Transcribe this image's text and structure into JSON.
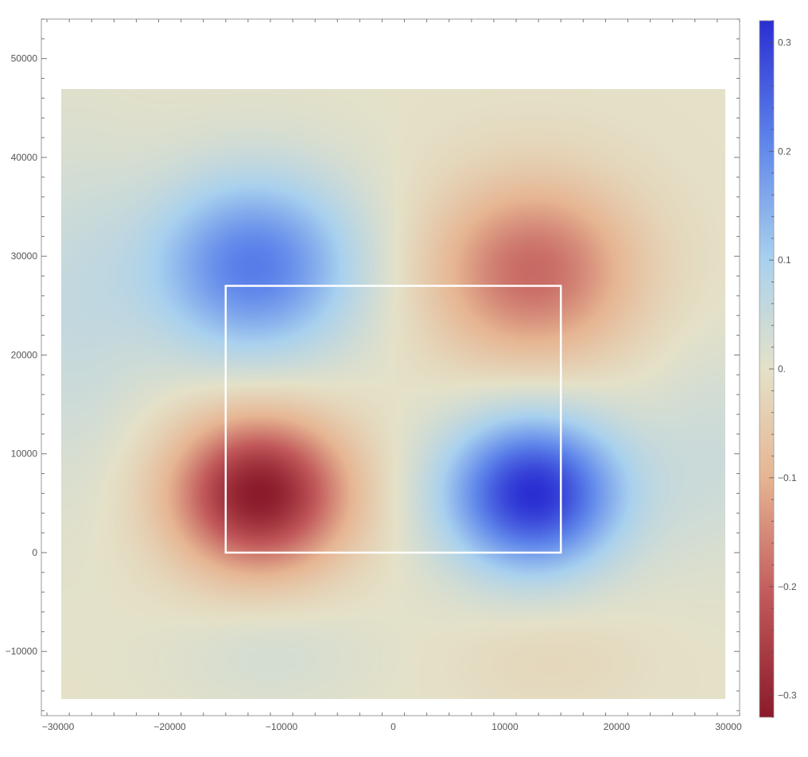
{
  "chart_data": {
    "type": "heatmap",
    "title": "",
    "xlabel": "",
    "ylabel": "",
    "xlim": [
      -31500,
      31000
    ],
    "ylim": [
      -16500,
      54000
    ],
    "data_extent": {
      "x": [
        -29700,
        29700
      ],
      "y": [
        -14800,
        46900
      ]
    },
    "x_ticks": [
      -30000,
      -20000,
      -10000,
      0,
      10000,
      20000,
      30000
    ],
    "x_tick_labels": [
      "−30000",
      "−20000",
      "−10000",
      "0",
      "10000",
      "20000",
      "30000"
    ],
    "y_ticks": [
      -10000,
      0,
      10000,
      20000,
      30000,
      40000,
      50000
    ],
    "y_tick_labels": [
      "−10000",
      "0",
      "10000",
      "20000",
      "30000",
      "40000",
      "50000"
    ],
    "value_range": [
      -0.32,
      0.32
    ],
    "colorbar": {
      "ticks": [
        0.3,
        0.2,
        0.1,
        0,
        -0.1,
        -0.2,
        -0.3
      ],
      "tick_labels": [
        "0.3",
        "0.2",
        "0.1",
        "0.",
        "−0.1",
        "−0.2",
        "−0.3"
      ],
      "colors": {
        "max": "#2a2ed2",
        "high": "#5d84ea",
        "mid_high": "#a9d1ee",
        "zero": "#e4e1c8",
        "mid_low": "#e6b592",
        "low": "#c1585a",
        "min": "#8a1a2a"
      }
    },
    "features": [
      {
        "x": -12500,
        "y": 29000,
        "value": 0.22,
        "sx": 6500,
        "sy": 6500
      },
      {
        "x": 12500,
        "y": 28500,
        "value": -0.19,
        "sx": 6500,
        "sy": 6500
      },
      {
        "x": -12000,
        "y": 6000,
        "value": -0.32,
        "sx": 5500,
        "sy": 5500
      },
      {
        "x": 12500,
        "y": 6000,
        "value": 0.32,
        "sx": 5500,
        "sy": 5500
      },
      {
        "x": -11000,
        "y": -10000,
        "value": 0.03,
        "sx": 6000,
        "sy": 4000
      },
      {
        "x": 14000,
        "y": -10500,
        "value": -0.025,
        "sx": 6000,
        "sy": 4000
      },
      {
        "x": -29000,
        "y": 24000,
        "value": 0.05,
        "sx": 5000,
        "sy": 12000
      },
      {
        "x": 29000,
        "y": 10000,
        "value": 0.04,
        "sx": 5000,
        "sy": 8000
      }
    ],
    "region_outline": {
      "x": [
        -15000,
        15000
      ],
      "y": [
        0,
        27000
      ],
      "color": "#ffffff"
    }
  }
}
